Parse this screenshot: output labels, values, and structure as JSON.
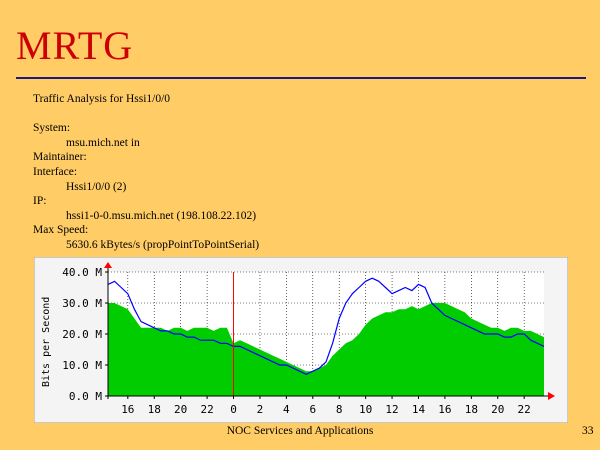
{
  "slide": {
    "title": "MRTG",
    "footer": "NOC Services and Applications",
    "page_number": "33"
  },
  "info": {
    "heading": "Traffic Analysis for Hssi1/0/0",
    "system_label": "System:",
    "system_value": "msu.mich.net in",
    "maintainer_label": "Maintainer:",
    "interface_label": "Interface:",
    "interface_value": "Hssi1/0/0 (2)",
    "ip_label": "IP:",
    "ip_value": "hssi1-0-0.msu.mich.net (198.108.22.102)",
    "maxspeed_label": "Max Speed:",
    "maxspeed_value": "5630.6 kBytes/s (propPointToPointSerial)"
  },
  "colors": {
    "in": "#00cc00",
    "out": "#0000ff",
    "now_marker": "#ff0000",
    "title": "#cc0000",
    "background": "#ffcc66"
  },
  "chart_data": {
    "type": "area",
    "ylabel": "Bits per Second",
    "y_ticks": [
      "0.0 M",
      "10.0 M",
      "20.0 M",
      "30.0 M",
      "40.0 M"
    ],
    "ylim": [
      0,
      40
    ],
    "x_ticks": [
      "16",
      "18",
      "20",
      "22",
      "0",
      "2",
      "4",
      "6",
      "8",
      "10",
      "12",
      "14",
      "16",
      "18",
      "20",
      "22"
    ],
    "x_hours": [
      -8,
      -6,
      -4,
      -2,
      0,
      2,
      4,
      6,
      8,
      10,
      12,
      14,
      16,
      18,
      20,
      22
    ],
    "xlim": [
      -9.5,
      23.5
    ],
    "marker_hour": 0,
    "grid": true,
    "series": [
      {
        "key": "in",
        "x": [
          -9.5,
          -9,
          -8.5,
          -8,
          -7.5,
          -7,
          -6.5,
          -6,
          -5.5,
          -5,
          -4.5,
          -4,
          -3.5,
          -3,
          -2.5,
          -2,
          -1.5,
          -1,
          -0.5,
          0,
          0.5,
          1,
          1.5,
          2,
          2.5,
          3,
          3.5,
          4,
          4.5,
          5,
          5.5,
          6,
          6.5,
          7,
          7.5,
          8,
          8.5,
          9,
          9.5,
          10,
          10.5,
          11,
          11.5,
          12,
          12.5,
          13,
          13.5,
          14,
          14.5,
          15,
          15.5,
          16,
          16.5,
          17,
          17.5,
          18,
          18.5,
          19,
          19.5,
          20,
          20.5,
          21,
          21.5,
          22,
          22.5,
          23,
          23.5
        ],
        "values": [
          30,
          30,
          29,
          28,
          25,
          22,
          22,
          22,
          22,
          21,
          22,
          22,
          21,
          22,
          22,
          22,
          21,
          22,
          22,
          17,
          18,
          17,
          16,
          15,
          14,
          13,
          12,
          11,
          10,
          9,
          8,
          8,
          9,
          10,
          13,
          15,
          17,
          18,
          20,
          23,
          25,
          26,
          27,
          27,
          28,
          28,
          29,
          28,
          29,
          30,
          30,
          30,
          29,
          28,
          27,
          25,
          24,
          23,
          22,
          22,
          21,
          22,
          22,
          21,
          21,
          20,
          19
        ]
      },
      {
        "key": "out",
        "x": [
          -9.5,
          -9,
          -8.5,
          -8,
          -7.5,
          -7,
          -6.5,
          -6,
          -5.5,
          -5,
          -4.5,
          -4,
          -3.5,
          -3,
          -2.5,
          -2,
          -1.5,
          -1,
          -0.5,
          0,
          0.5,
          1,
          1.5,
          2,
          2.5,
          3,
          3.5,
          4,
          4.5,
          5,
          5.5,
          6,
          6.5,
          7,
          7.5,
          8,
          8.5,
          9,
          9.5,
          10,
          10.5,
          11,
          11.5,
          12,
          12.5,
          13,
          13.5,
          14,
          14.5,
          15,
          15.5,
          16,
          16.5,
          17,
          17.5,
          18,
          18.5,
          19,
          19.5,
          20,
          20.5,
          21,
          21.5,
          22,
          22.5,
          23,
          23.5
        ],
        "values": [
          36,
          37,
          35,
          33,
          28,
          24,
          23,
          22,
          21,
          21,
          20,
          20,
          19,
          19,
          18,
          18,
          18,
          17,
          17,
          16,
          16,
          15,
          14,
          13,
          12,
          11,
          10,
          10,
          9,
          8,
          7,
          8,
          9,
          11,
          17,
          25,
          30,
          33,
          35,
          37,
          38,
          37,
          35,
          33,
          34,
          35,
          34,
          36,
          35,
          30,
          28,
          26,
          25,
          24,
          23,
          22,
          21,
          20,
          20,
          20,
          19,
          19,
          20,
          20,
          18,
          17,
          16
        ]
      }
    ]
  }
}
